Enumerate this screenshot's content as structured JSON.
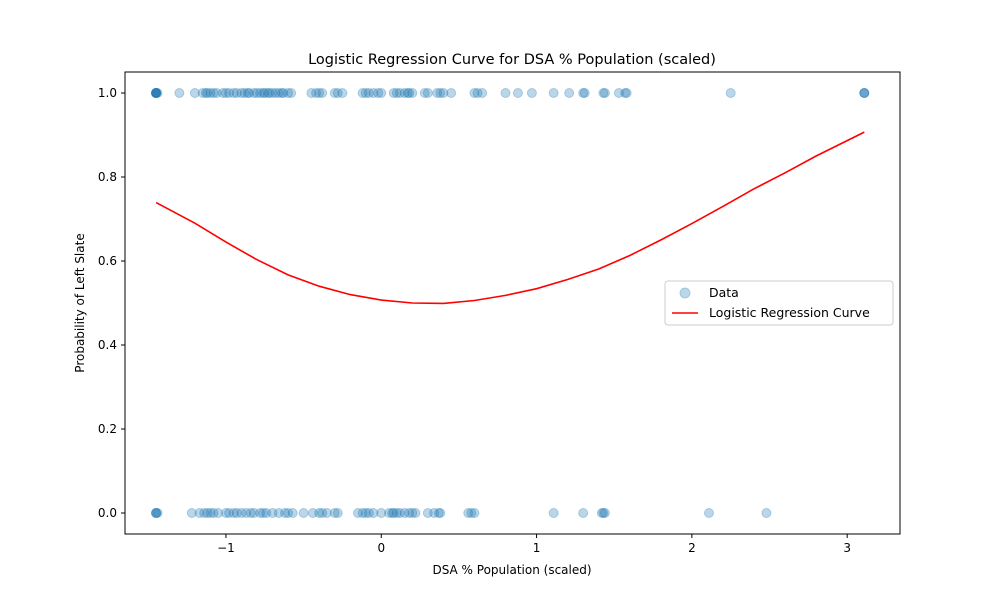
{
  "chart_data": {
    "type": "scatter",
    "title": "Logistic Regression Curve for DSA % Population (scaled)",
    "xlabel": "DSA % Population (scaled)",
    "ylabel": "Probability of Left Slate",
    "xlim": [
      -1.65,
      3.34
    ],
    "ylim": [
      -0.05,
      1.05
    ],
    "xticks": [
      -1,
      0,
      1,
      2,
      3
    ],
    "xtick_labels": [
      "−1",
      "0",
      "1",
      "2",
      "3"
    ],
    "yticks": [
      0.0,
      0.2,
      0.4,
      0.6,
      0.8,
      1.0
    ],
    "ytick_labels": [
      "0.0",
      "0.2",
      "0.4",
      "0.6",
      "0.8",
      "1.0"
    ],
    "grid": false,
    "legend_position": "center-right",
    "series": [
      {
        "name": "Data",
        "kind": "scatter",
        "color": "#1f77b4",
        "alpha": 0.3,
        "points": [
          [
            -1.45,
            1
          ],
          [
            -1.45,
            1
          ],
          [
            -1.45,
            1
          ],
          [
            -1.45,
            1
          ],
          [
            -1.45,
            1
          ],
          [
            -1.45,
            1
          ],
          [
            -1.44,
            1
          ],
          [
            -1.3,
            1
          ],
          [
            -1.2,
            1
          ],
          [
            -1.15,
            1
          ],
          [
            -1.13,
            1
          ],
          [
            -1.12,
            1
          ],
          [
            -1.1,
            1
          ],
          [
            -1.08,
            1
          ],
          [
            -1.06,
            1
          ],
          [
            -1.02,
            1
          ],
          [
            -1.0,
            1
          ],
          [
            -0.98,
            1
          ],
          [
            -0.95,
            1
          ],
          [
            -0.93,
            1
          ],
          [
            -0.9,
            1
          ],
          [
            -0.88,
            1
          ],
          [
            -0.86,
            1
          ],
          [
            -0.85,
            1
          ],
          [
            -0.82,
            1
          ],
          [
            -0.8,
            1
          ],
          [
            -0.78,
            1
          ],
          [
            -0.76,
            1
          ],
          [
            -0.75,
            1
          ],
          [
            -0.73,
            1
          ],
          [
            -0.72,
            1
          ],
          [
            -0.7,
            1
          ],
          [
            -0.68,
            1
          ],
          [
            -0.66,
            1
          ],
          [
            -0.64,
            1
          ],
          [
            -0.63,
            1
          ],
          [
            -0.6,
            1
          ],
          [
            -0.58,
            1
          ],
          [
            -0.45,
            1
          ],
          [
            -0.42,
            1
          ],
          [
            -0.4,
            1
          ],
          [
            -0.38,
            1
          ],
          [
            -0.3,
            1
          ],
          [
            -0.28,
            1
          ],
          [
            -0.25,
            1
          ],
          [
            -0.12,
            1
          ],
          [
            -0.1,
            1
          ],
          [
            -0.08,
            1
          ],
          [
            -0.05,
            1
          ],
          [
            -0.02,
            1
          ],
          [
            0.0,
            1
          ],
          [
            0.08,
            1
          ],
          [
            0.1,
            1
          ],
          [
            0.12,
            1
          ],
          [
            0.15,
            1
          ],
          [
            0.17,
            1
          ],
          [
            0.18,
            1
          ],
          [
            0.2,
            1
          ],
          [
            0.28,
            1
          ],
          [
            0.3,
            1
          ],
          [
            0.36,
            1
          ],
          [
            0.38,
            1
          ],
          [
            0.4,
            1
          ],
          [
            0.45,
            1
          ],
          [
            0.6,
            1
          ],
          [
            0.62,
            1
          ],
          [
            0.65,
            1
          ],
          [
            0.8,
            1
          ],
          [
            0.88,
            1
          ],
          [
            0.97,
            1
          ],
          [
            1.11,
            1
          ],
          [
            1.21,
            1
          ],
          [
            1.3,
            1
          ],
          [
            1.31,
            1
          ],
          [
            1.43,
            1
          ],
          [
            1.44,
            1
          ],
          [
            1.53,
            1
          ],
          [
            1.57,
            1
          ],
          [
            1.58,
            1
          ],
          [
            2.25,
            1
          ],
          [
            3.11,
            1
          ],
          [
            3.11,
            1
          ],
          [
            3.11,
            1
          ],
          [
            -1.45,
            0
          ],
          [
            -1.45,
            0
          ],
          [
            -1.45,
            0
          ],
          [
            -1.44,
            0
          ],
          [
            -1.22,
            0
          ],
          [
            -1.17,
            0
          ],
          [
            -1.14,
            0
          ],
          [
            -1.12,
            0
          ],
          [
            -1.1,
            0
          ],
          [
            -1.08,
            0
          ],
          [
            -1.05,
            0
          ],
          [
            -1.0,
            0
          ],
          [
            -0.98,
            0
          ],
          [
            -0.95,
            0
          ],
          [
            -0.93,
            0
          ],
          [
            -0.9,
            0
          ],
          [
            -0.87,
            0
          ],
          [
            -0.84,
            0
          ],
          [
            -0.82,
            0
          ],
          [
            -0.78,
            0
          ],
          [
            -0.76,
            0
          ],
          [
            -0.74,
            0
          ],
          [
            -0.7,
            0
          ],
          [
            -0.66,
            0
          ],
          [
            -0.62,
            0
          ],
          [
            -0.6,
            0
          ],
          [
            -0.57,
            0
          ],
          [
            -0.5,
            0
          ],
          [
            -0.44,
            0
          ],
          [
            -0.4,
            0
          ],
          [
            -0.38,
            0
          ],
          [
            -0.35,
            0
          ],
          [
            -0.3,
            0
          ],
          [
            -0.28,
            0
          ],
          [
            -0.15,
            0
          ],
          [
            -0.12,
            0
          ],
          [
            -0.1,
            0
          ],
          [
            -0.08,
            0
          ],
          [
            -0.05,
            0
          ],
          [
            0.0,
            0
          ],
          [
            0.05,
            0
          ],
          [
            0.07,
            0
          ],
          [
            0.08,
            0
          ],
          [
            0.1,
            0
          ],
          [
            0.12,
            0
          ],
          [
            0.15,
            0
          ],
          [
            0.18,
            0
          ],
          [
            0.2,
            0
          ],
          [
            0.22,
            0
          ],
          [
            0.3,
            0
          ],
          [
            0.34,
            0
          ],
          [
            0.37,
            0
          ],
          [
            0.38,
            0
          ],
          [
            0.56,
            0
          ],
          [
            0.58,
            0
          ],
          [
            0.6,
            0
          ],
          [
            1.11,
            0
          ],
          [
            1.3,
            0
          ],
          [
            1.42,
            0
          ],
          [
            1.43,
            0
          ],
          [
            1.44,
            0
          ],
          [
            2.11,
            0
          ],
          [
            2.48,
            0
          ]
        ]
      },
      {
        "name": "Logistic Regression Curve",
        "kind": "line",
        "color": "#ff0000",
        "points": [
          [
            -1.45,
            0.739
          ],
          [
            -1.2,
            0.69
          ],
          [
            -1.0,
            0.645
          ],
          [
            -0.8,
            0.603
          ],
          [
            -0.6,
            0.567
          ],
          [
            -0.4,
            0.54
          ],
          [
            -0.2,
            0.52
          ],
          [
            0.0,
            0.507
          ],
          [
            0.2,
            0.5
          ],
          [
            0.4,
            0.499
          ],
          [
            0.6,
            0.506
          ],
          [
            0.8,
            0.518
          ],
          [
            1.0,
            0.534
          ],
          [
            1.2,
            0.556
          ],
          [
            1.4,
            0.581
          ],
          [
            1.6,
            0.613
          ],
          [
            1.8,
            0.65
          ],
          [
            2.0,
            0.689
          ],
          [
            2.2,
            0.73
          ],
          [
            2.4,
            0.772
          ],
          [
            2.6,
            0.81
          ],
          [
            2.8,
            0.85
          ],
          [
            3.11,
            0.907
          ]
        ]
      }
    ]
  }
}
